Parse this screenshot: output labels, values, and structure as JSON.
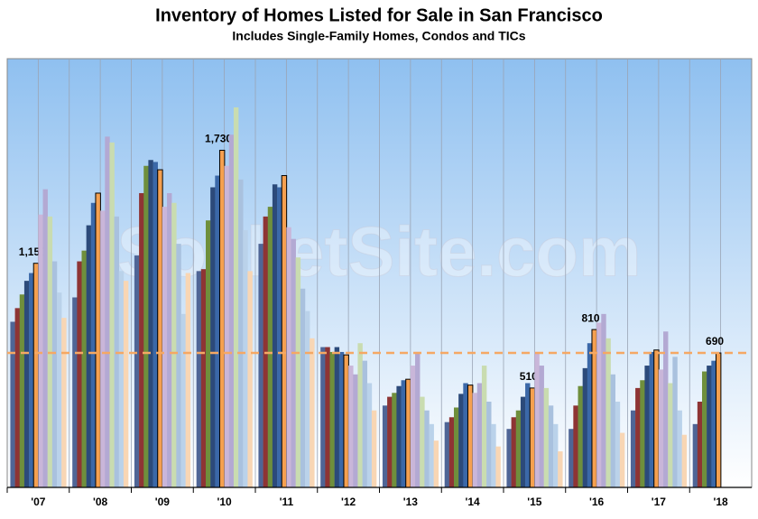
{
  "chart_data": {
    "type": "bar",
    "title": "Inventory of Homes Listed for Sale in San Francisco",
    "subtitle": "Includes Single-Family Homes, Condos and TICs",
    "watermark": "SocketSite.com",
    "categories": [
      "'07",
      "'08",
      "'09",
      "'10",
      "'11",
      "'12",
      "'13",
      "'14",
      "'15",
      "'16",
      "'17",
      "'18"
    ],
    "ylim": [
      0,
      2200
    ],
    "reference_line": {
      "value": 690,
      "color": "#f5a864"
    },
    "series": [
      {
        "color": "#4f6596",
        "values": [
          850,
          975,
          1190,
          1110,
          1250,
          720,
          420,
          335,
          300,
          300,
          395,
          325
        ]
      },
      {
        "color": "#8e3434",
        "values": [
          920,
          1160,
          1510,
          1120,
          1390,
          720,
          465,
          360,
          360,
          420,
          510,
          440
        ]
      },
      {
        "color": "#6f8f3c",
        "values": [
          990,
          1215,
          1650,
          1370,
          1440,
          695,
          485,
          410,
          395,
          520,
          550,
          595
        ]
      },
      {
        "color": "#2c4a7a",
        "values": [
          1060,
          1345,
          1680,
          1540,
          1555,
          720,
          520,
          480,
          465,
          612,
          625,
          625
        ]
      },
      {
        "color": "#3b68a8",
        "values": [
          1100,
          1460,
          1670,
          1600,
          1540,
          695,
          550,
          535,
          535,
          740,
          695,
          650
        ]
      },
      {
        "color": "#f5a050",
        "values": [
          1150,
          1510,
          1630,
          1730,
          1600,
          680,
          555,
          525,
          510,
          810,
          705,
          690
        ],
        "value_labels": [
          "1,150",
          null,
          null,
          "1,730",
          null,
          null,
          null,
          null,
          "510",
          "810",
          null,
          "690"
        ]
      },
      {
        "color": "#c9b6d9",
        "values": [
          1400,
          1420,
          1440,
          1650,
          1335,
          625,
          625,
          485,
          695,
          845,
          605,
          null
        ]
      },
      {
        "color": "#b3a9d3",
        "values": [
          1530,
          1800,
          1510,
          1810,
          1275,
          580,
          695,
          535,
          625,
          890,
          800,
          null
        ]
      },
      {
        "color": "#c9dcb0",
        "values": [
          1390,
          1770,
          1460,
          1950,
          1180,
          740,
          465,
          625,
          510,
          765,
          535,
          null
        ]
      },
      {
        "color": "#a9c1de",
        "values": [
          1160,
          1390,
          1250,
          1580,
          1020,
          650,
          395,
          440,
          420,
          580,
          670,
          null
        ]
      },
      {
        "color": "#bad2ea",
        "values": [
          1000,
          1110,
          890,
          1320,
          905,
          535,
          325,
          325,
          325,
          440,
          395,
          null
        ]
      },
      {
        "color": "#f8d6b4",
        "values": [
          870,
          1060,
          1100,
          1110,
          765,
          395,
          240,
          210,
          185,
          280,
          270,
          null
        ]
      }
    ]
  }
}
